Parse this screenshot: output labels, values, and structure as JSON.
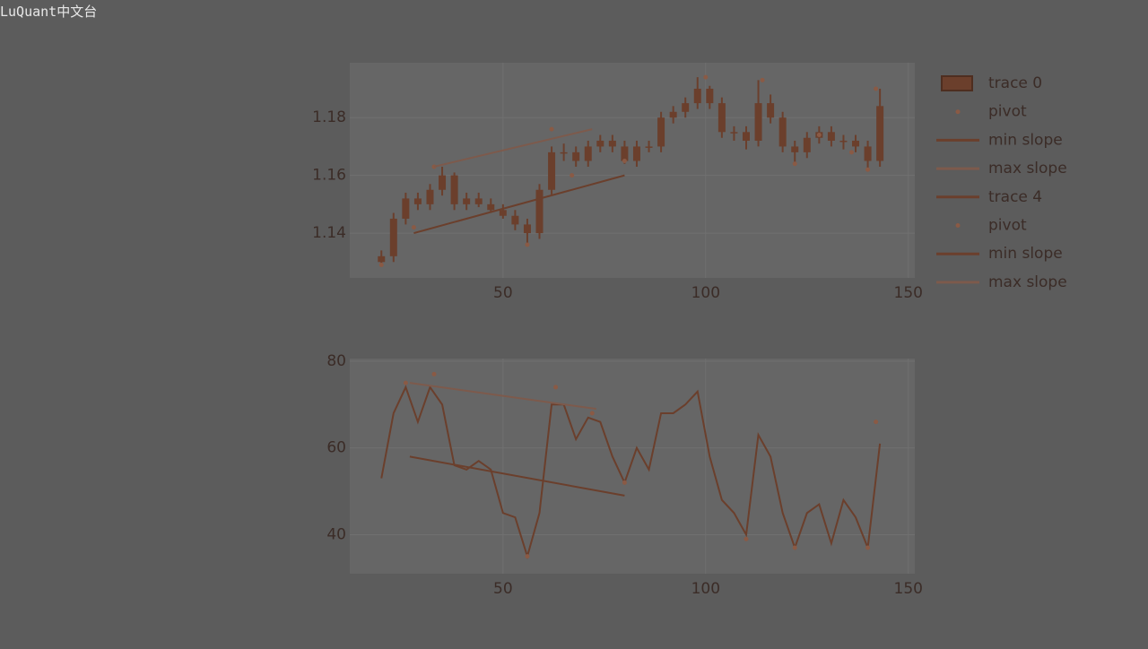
{
  "watermark": "LuQuant中文台",
  "chart_data": [
    {
      "type": "candlestick",
      "grid": true,
      "plot_bg": "#666666",
      "xlim": [
        12.2,
        151.6
      ],
      "ylim": [
        1.1245,
        1.199
      ],
      "xticks": [
        50,
        100,
        150
      ],
      "yticks": [
        1.14,
        1.16,
        1.18
      ],
      "series": [
        {
          "name": "trace 0",
          "mode": "candlestick",
          "color": "#6b3f2c",
          "x": [
            20,
            23,
            26,
            29,
            32,
            35,
            38,
            41,
            44,
            47,
            50,
            53,
            56,
            59,
            62,
            65,
            68,
            71,
            74,
            77,
            80,
            83,
            86,
            89,
            92,
            95,
            98,
            101,
            104,
            107,
            110,
            113,
            116,
            119,
            122,
            125,
            128,
            131,
            134,
            137,
            140,
            143
          ],
          "open": [
            1.13,
            1.132,
            1.145,
            1.152,
            1.15,
            1.155,
            1.16,
            1.15,
            1.152,
            1.15,
            1.148,
            1.146,
            1.143,
            1.14,
            1.155,
            1.168,
            1.168,
            1.165,
            1.17,
            1.172,
            1.17,
            1.165,
            1.17,
            1.17,
            1.18,
            1.182,
            1.185,
            1.19,
            1.185,
            1.175,
            1.175,
            1.172,
            1.185,
            1.18,
            1.17,
            1.168,
            1.173,
            1.175,
            1.172,
            1.172,
            1.17,
            1.165
          ],
          "high": [
            1.134,
            1.147,
            1.154,
            1.154,
            1.157,
            1.163,
            1.161,
            1.154,
            1.154,
            1.152,
            1.15,
            1.148,
            1.145,
            1.157,
            1.17,
            1.171,
            1.17,
            1.172,
            1.174,
            1.174,
            1.172,
            1.172,
            1.172,
            1.182,
            1.184,
            1.187,
            1.194,
            1.191,
            1.187,
            1.177,
            1.177,
            1.193,
            1.188,
            1.182,
            1.172,
            1.175,
            1.177,
            1.177,
            1.174,
            1.174,
            1.172,
            1.19
          ],
          "low": [
            1.129,
            1.13,
            1.143,
            1.148,
            1.148,
            1.153,
            1.148,
            1.148,
            1.149,
            1.147,
            1.145,
            1.141,
            1.136,
            1.138,
            1.153,
            1.165,
            1.163,
            1.163,
            1.168,
            1.168,
            1.164,
            1.163,
            1.168,
            1.168,
            1.178,
            1.18,
            1.183,
            1.183,
            1.173,
            1.172,
            1.169,
            1.17,
            1.178,
            1.168,
            1.164,
            1.166,
            1.171,
            1.17,
            1.169,
            1.168,
            1.162,
            1.163
          ],
          "close": [
            1.132,
            1.145,
            1.152,
            1.15,
            1.155,
            1.16,
            1.15,
            1.152,
            1.15,
            1.148,
            1.146,
            1.143,
            1.14,
            1.155,
            1.168,
            1.168,
            1.165,
            1.17,
            1.172,
            1.17,
            1.165,
            1.17,
            1.17,
            1.18,
            1.182,
            1.185,
            1.19,
            1.185,
            1.175,
            1.175,
            1.172,
            1.185,
            1.18,
            1.17,
            1.168,
            1.173,
            1.175,
            1.172,
            1.172,
            1.17,
            1.165,
            1.184
          ]
        },
        {
          "name": "pivot",
          "mode": "markers",
          "color": "#8a5a45",
          "x": [
            20,
            28,
            33,
            56,
            62,
            67,
            80,
            100,
            114,
            122,
            128,
            136,
            140,
            142
          ],
          "values": [
            1.129,
            1.142,
            1.163,
            1.136,
            1.176,
            1.16,
            1.165,
            1.194,
            1.193,
            1.164,
            1.174,
            1.168,
            1.162,
            1.19
          ]
        },
        {
          "name": "min slope",
          "mode": "lines",
          "color": "#6b3f2c",
          "x": [
            28,
            80
          ],
          "values": [
            1.14,
            1.16
          ]
        },
        {
          "name": "max slope",
          "mode": "lines",
          "color": "#7d5a4c",
          "x": [
            33,
            72
          ],
          "values": [
            1.163,
            1.176
          ]
        }
      ]
    },
    {
      "type": "line",
      "grid": true,
      "plot_bg": "#666666",
      "xlim": [
        12.2,
        151.6
      ],
      "ylim": [
        31,
        80.6
      ],
      "xticks": [
        50,
        100,
        150
      ],
      "yticks": [
        40,
        60,
        80
      ],
      "series": [
        {
          "name": "trace 4",
          "mode": "lines",
          "color": "#6b3f2c",
          "x": [
            20,
            23,
            26,
            29,
            32,
            35,
            38,
            41,
            44,
            47,
            50,
            53,
            56,
            59,
            62,
            65,
            68,
            71,
            74,
            77,
            80,
            83,
            86,
            89,
            92,
            95,
            98,
            101,
            104,
            107,
            110,
            113,
            116,
            119,
            122,
            125,
            128,
            131,
            134,
            137,
            140,
            143
          ],
          "values": [
            53,
            68,
            74,
            66,
            74,
            70,
            56,
            55,
            57,
            55,
            45,
            44,
            35,
            45,
            70,
            70,
            62,
            67,
            66,
            58,
            52,
            60,
            55,
            68,
            68,
            70,
            73,
            58,
            48,
            45,
            40,
            63,
            58,
            45,
            37,
            45,
            47,
            38,
            48,
            44,
            37,
            61
          ]
        },
        {
          "name": "pivot",
          "mode": "markers",
          "color": "#8a5a45",
          "x": [
            26,
            33,
            56,
            63,
            72,
            80,
            110,
            122,
            140,
            142
          ],
          "values": [
            75,
            77,
            35,
            74,
            68,
            52,
            39,
            37,
            37,
            66
          ]
        },
        {
          "name": "min slope",
          "mode": "lines",
          "color": "#6b3f2c",
          "x": [
            27,
            80
          ],
          "values": [
            58,
            49
          ]
        },
        {
          "name": "max slope",
          "mode": "lines",
          "color": "#7d5a4c",
          "x": [
            27,
            73
          ],
          "values": [
            75,
            69
          ]
        }
      ]
    }
  ]
}
